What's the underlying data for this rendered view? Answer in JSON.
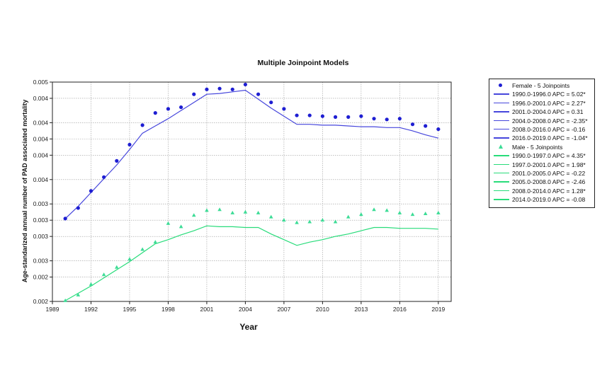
{
  "chart_data": {
    "type": "line",
    "title": "Multiple Joinpoint Models",
    "xlabel": "Year",
    "ylabel": "Age-standarized annual number of PAD associated mortality",
    "xlim": [
      1989,
      2020
    ],
    "ylim": [
      0.002,
      0.0047
    ],
    "x_ticks": [
      1989,
      1992,
      1995,
      1998,
      2001,
      2004,
      2007,
      2010,
      2013,
      2016,
      2019
    ],
    "y_ticks": [
      0.002,
      0.0023,
      0.0025,
      0.0028,
      0.003,
      0.0032,
      0.0035,
      0.0038,
      0.004,
      0.0042,
      0.0045,
      0.0047
    ],
    "y_tick_labels": [
      "0.002",
      "0.002",
      "0.003",
      "0.003",
      "0.003",
      "0.003",
      "0.004",
      "0.004",
      "0.004",
      "0.004",
      "0.004",
      "0.005"
    ],
    "grid": true,
    "legend_position": "right",
    "series": [
      {
        "name": "Female - 5 Joinpoints",
        "marker": "circle",
        "color": "#1e1ed2",
        "line_color": "#4646dc",
        "x": [
          1990,
          1991,
          1992,
          1993,
          1994,
          1995,
          1996,
          1997,
          1998,
          1999,
          2000,
          2001,
          2002,
          2003,
          2004,
          2005,
          2006,
          2007,
          2008,
          2009,
          2010,
          2011,
          2012,
          2013,
          2014,
          2015,
          2016,
          2017,
          2018,
          2019
        ],
        "observed": [
          0.00302,
          0.00315,
          0.00336,
          0.00353,
          0.00373,
          0.00393,
          0.00417,
          0.00432,
          0.00437,
          0.00439,
          0.00455,
          0.00461,
          0.00462,
          0.00461,
          0.00467,
          0.00455,
          0.00445,
          0.00437,
          0.00429,
          0.00429,
          0.00428,
          0.00427,
          0.00427,
          0.00428,
          0.00425,
          0.00424,
          0.00425,
          0.00418,
          0.00416,
          0.00412
        ],
        "fitted": [
          0.00302,
          0.00317,
          0.00334,
          0.00351,
          0.00368,
          0.00387,
          0.00407,
          0.00416,
          0.00425,
          0.00435,
          0.00445,
          0.00455,
          0.00456,
          0.00458,
          0.0046,
          0.00449,
          0.00438,
          0.00428,
          0.00418,
          0.00418,
          0.00417,
          0.00417,
          0.00416,
          0.00415,
          0.00415,
          0.00414,
          0.00414,
          0.0041,
          0.00405,
          0.00401
        ]
      },
      {
        "name": "Male - 5 Joinpoints",
        "marker": "triangle",
        "color": "#3cdc96",
        "line_color": "#28dc7a",
        "x": [
          1990,
          1991,
          1992,
          1993,
          1994,
          1995,
          1996,
          1997,
          1998,
          1999,
          2000,
          2001,
          2002,
          2003,
          2004,
          2005,
          2006,
          2007,
          2008,
          2009,
          2010,
          2011,
          2012,
          2013,
          2014,
          2015,
          2016,
          2017,
          2018,
          2019
        ],
        "observed": [
          0.00201,
          0.00208,
          0.00221,
          0.00233,
          0.00242,
          0.00252,
          0.00264,
          0.00273,
          0.00296,
          0.00292,
          0.00306,
          0.00312,
          0.00313,
          0.00309,
          0.0031,
          0.00309,
          0.00304,
          0.003,
          0.00297,
          0.00298,
          0.003,
          0.00298,
          0.00304,
          0.00307,
          0.00313,
          0.00312,
          0.00309,
          0.00307,
          0.00308,
          0.00309
        ],
        "fitted": [
          0.00201,
          0.0021,
          0.00219,
          0.00229,
          0.00239,
          0.00249,
          0.0026,
          0.00271,
          0.00276,
          0.00282,
          0.00287,
          0.00293,
          0.00292,
          0.00292,
          0.00291,
          0.00291,
          0.00283,
          0.00276,
          0.00269,
          0.00273,
          0.00276,
          0.0028,
          0.00283,
          0.00287,
          0.00291,
          0.00291,
          0.0029,
          0.0029,
          0.0029,
          0.00289
        ]
      }
    ],
    "legend": [
      {
        "kind": "marker",
        "series": 0,
        "label": "Female - 5 Joinpoints"
      },
      {
        "kind": "line",
        "series": 0,
        "label": "1990.0-1996.0 APC  =  5.02*"
      },
      {
        "kind": "line",
        "series": 0,
        "label": "1996.0-2001.0 APC  =  2.27*"
      },
      {
        "kind": "line",
        "series": 0,
        "label": "2001.0-2004.0 APC  =  0.31"
      },
      {
        "kind": "line",
        "series": 0,
        "label": "2004.0-2008.0 APC  = -2.35*"
      },
      {
        "kind": "line",
        "series": 0,
        "label": "2008.0-2016.0 APC  = -0.16"
      },
      {
        "kind": "line",
        "series": 0,
        "label": "2016.0-2019.0 APC  = -1.04*"
      },
      {
        "kind": "marker",
        "series": 1,
        "label": "Male - 5 Joinpoints"
      },
      {
        "kind": "line",
        "series": 1,
        "label": "1990.0-1997.0 APC  =  4.35*"
      },
      {
        "kind": "line",
        "series": 1,
        "label": "1997.0-2001.0 APC  =  1.98*"
      },
      {
        "kind": "line",
        "series": 1,
        "label": "2001.0-2005.0 APC  = -0.22"
      },
      {
        "kind": "line",
        "series": 1,
        "label": "2005.0-2008.0 APC  = -2.46"
      },
      {
        "kind": "line",
        "series": 1,
        "label": "2008.0-2014.0 APC  =  1.28*"
      },
      {
        "kind": "line",
        "series": 1,
        "label": "2014.0-2019.0 APC  = -0.08"
      }
    ]
  }
}
